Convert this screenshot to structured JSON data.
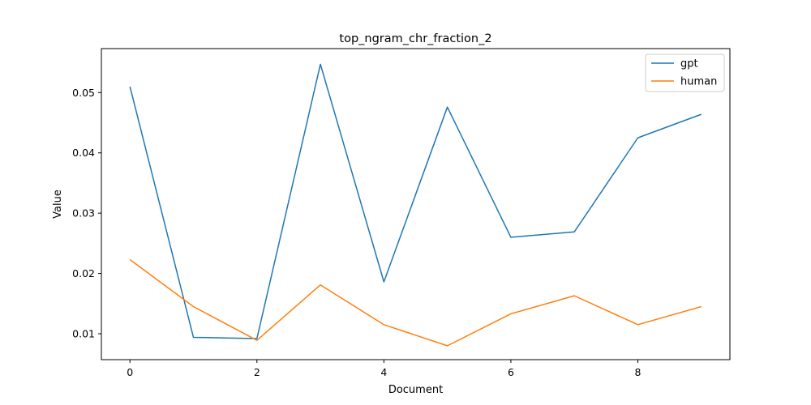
{
  "chart_data": {
    "type": "line",
    "title": "top_ngram_chr_fraction_2",
    "xlabel": "Document",
    "ylabel": "Value",
    "xlim": [
      -0.45,
      9.45
    ],
    "ylim": [
      0.0057,
      0.0573
    ],
    "x_ticks": [
      0,
      2,
      4,
      6,
      8
    ],
    "x_tick_labels": [
      "0",
      "2",
      "4",
      "6",
      "8"
    ],
    "y_ticks": [
      0.01,
      0.02,
      0.03,
      0.04,
      0.05
    ],
    "y_tick_labels": [
      "0.01",
      "0.02",
      "0.03",
      "0.04",
      "0.05"
    ],
    "grid": false,
    "legend_position": "top-right",
    "x": [
      0,
      1,
      2,
      3,
      4,
      5,
      6,
      7,
      8,
      9
    ],
    "series": [
      {
        "name": "gpt",
        "color": "#1f77b4",
        "values": [
          0.051,
          0.0094,
          0.0092,
          0.0547,
          0.0186,
          0.0476,
          0.026,
          0.0269,
          0.0425,
          0.0464
        ]
      },
      {
        "name": "human",
        "color": "#ff7f0e",
        "values": [
          0.0223,
          0.0145,
          0.0089,
          0.0181,
          0.0115,
          0.008,
          0.0133,
          0.0163,
          0.0115,
          0.0145
        ]
      }
    ]
  }
}
